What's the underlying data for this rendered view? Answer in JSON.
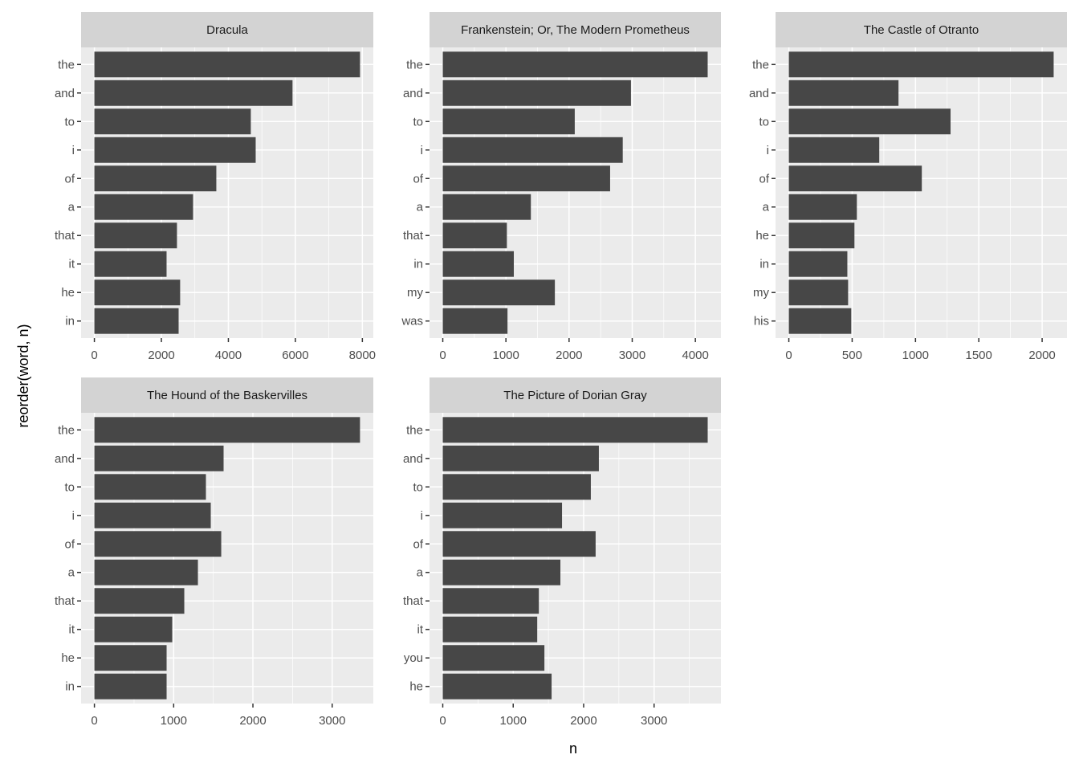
{
  "chart_data": {
    "type": "bar",
    "orientation": "horizontal",
    "xlabel": "n",
    "ylabel": "reorder(word, n)",
    "grid": true,
    "legend": "none",
    "colors": {
      "bar": "#474747",
      "panel_background": "#EBEBEB",
      "strip_background": "#D3D3D3",
      "grid": "#FFFFFF",
      "tick_text": "#4D4D4D"
    },
    "panels": [
      {
        "title": "Dracula",
        "categories": [
          "the",
          "and",
          "to",
          "i",
          "of",
          "a",
          "that",
          "it",
          "he",
          "in"
        ],
        "values": [
          7930,
          5915,
          4670,
          4815,
          3640,
          2945,
          2465,
          2155,
          2560,
          2515
        ],
        "xticks": [
          0,
          2000,
          4000,
          6000,
          8000
        ],
        "xtick_labels": [
          "0",
          "2000",
          "4000",
          "6000",
          "8000"
        ],
        "xminor": [
          1000,
          3000,
          5000,
          7000
        ],
        "xlim": [
          -397,
          8327
        ]
      },
      {
        "title": "Frankenstein; Or, The Modern Prometheus",
        "categories": [
          "the",
          "and",
          "to",
          "i",
          "of",
          "a",
          "that",
          "in",
          "my",
          "was"
        ],
        "values": [
          4195,
          2980,
          2090,
          2850,
          2650,
          1395,
          1015,
          1125,
          1775,
          1025
        ],
        "xticks": [
          0,
          1000,
          2000,
          3000,
          4000
        ],
        "xtick_labels": [
          "0",
          "1000",
          "2000",
          "3000",
          "4000"
        ],
        "xminor": [
          500,
          1500,
          2500,
          3500
        ],
        "xlim": [
          -210,
          4405
        ]
      },
      {
        "title": "The Castle of Otranto",
        "categories": [
          "the",
          "and",
          "to",
          "i",
          "of",
          "a",
          "he",
          "in",
          "my",
          "his"
        ],
        "values": [
          2091,
          866,
          1277,
          714,
          1050,
          537,
          518,
          462,
          468,
          493
        ],
        "xticks": [
          0,
          500,
          1000,
          1500,
          2000
        ],
        "xtick_labels": [
          "0",
          "500",
          "1000",
          "1500",
          "2000"
        ],
        "xminor": [
          250,
          750,
          1250,
          1750
        ],
        "xlim": [
          -105,
          2196
        ]
      },
      {
        "title": "The Hound of the Baskervilles",
        "categories": [
          "the",
          "and",
          "to",
          "i",
          "of",
          "a",
          "that",
          "it",
          "he",
          "in"
        ],
        "values": [
          3351,
          1630,
          1407,
          1468,
          1600,
          1306,
          1134,
          982,
          911,
          911
        ],
        "xticks": [
          0,
          1000,
          2000,
          3000
        ],
        "xtick_labels": [
          "0",
          "1000",
          "2000",
          "3000"
        ],
        "xminor": [
          500,
          1500,
          2500
        ],
        "xlim": [
          -168,
          3519
        ]
      },
      {
        "title": "The Picture of Dorian Gray",
        "categories": [
          "the",
          "and",
          "to",
          "i",
          "of",
          "a",
          "that",
          "it",
          "you",
          "he"
        ],
        "values": [
          3761,
          2216,
          2102,
          1693,
          2170,
          1670,
          1364,
          1341,
          1443,
          1545
        ],
        "xticks": [
          0,
          1000,
          2000,
          3000
        ],
        "xtick_labels": [
          "0",
          "1000",
          "2000",
          "3000"
        ],
        "xminor": [
          500,
          1500,
          2500,
          3500
        ],
        "xlim": [
          -188,
          3949
        ]
      }
    ]
  }
}
